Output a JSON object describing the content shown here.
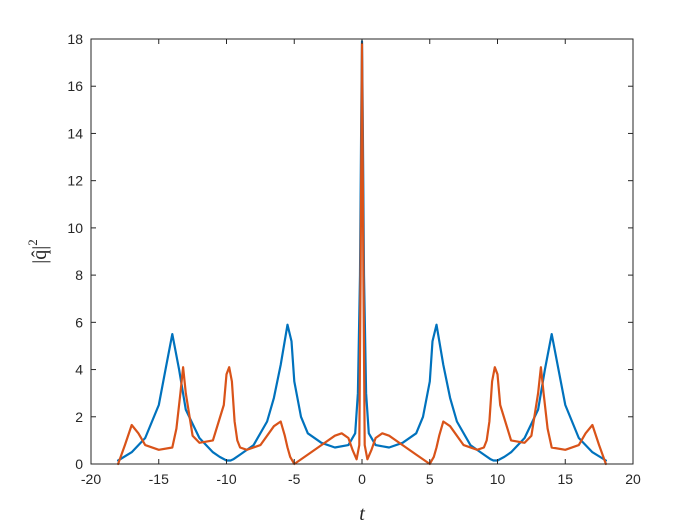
{
  "chart_data": {
    "type": "line",
    "title": "",
    "xlabel": "t",
    "ylabel_base": "|q̂|",
    "ylabel_sup": "2",
    "xlim": [
      -20,
      20
    ],
    "ylim": [
      0,
      18
    ],
    "xticks": [
      -20,
      -15,
      -10,
      -5,
      0,
      5,
      10,
      15,
      20
    ],
    "yticks": [
      0,
      2,
      4,
      6,
      8,
      10,
      12,
      14,
      16,
      18
    ],
    "grid": false,
    "series": [
      {
        "color": "#0072BD",
        "x": [
          -18,
          -17,
          -16,
          -15,
          -14.5,
          -14,
          -13.5,
          -13,
          -12,
          -11,
          -10.5,
          -10,
          -9.7,
          -9.5,
          -9,
          -8,
          -7,
          -6.5,
          -6,
          -5.5,
          -5.2,
          -5,
          -4.5,
          -4,
          -3,
          -2,
          -1,
          -0.5,
          -0.3,
          -0.15,
          -0.05,
          0,
          0.05,
          0.15,
          0.3,
          0.5,
          1,
          2,
          3,
          4,
          4.5,
          5,
          5.2,
          5.5,
          6,
          6.5,
          7,
          8,
          9,
          9.5,
          9.7,
          10,
          10.5,
          11,
          12,
          13,
          13.5,
          14,
          14.5,
          15,
          16,
          17,
          18
        ],
        "y": [
          0.15,
          0.5,
          1.1,
          2.5,
          4.0,
          5.5,
          4.0,
          2.3,
          1.1,
          0.5,
          0.3,
          0.15,
          0.15,
          0.2,
          0.4,
          0.8,
          1.8,
          2.8,
          4.2,
          5.9,
          5.2,
          3.5,
          2.0,
          1.3,
          0.9,
          0.7,
          0.8,
          1.3,
          3.0,
          8.0,
          15.0,
          17.9,
          15.0,
          8.0,
          3.0,
          1.3,
          0.8,
          0.7,
          0.9,
          1.3,
          2.0,
          3.5,
          5.2,
          5.9,
          4.2,
          2.8,
          1.8,
          0.8,
          0.4,
          0.2,
          0.15,
          0.15,
          0.3,
          0.5,
          1.1,
          2.3,
          4.0,
          5.5,
          4.0,
          2.5,
          1.1,
          0.5,
          0.15
        ]
      },
      {
        "color": "#D95319",
        "x": [
          -18,
          -17.5,
          -17,
          -16.5,
          -16,
          -15,
          -14,
          -13.7,
          -13.4,
          -13.2,
          -13,
          -12.5,
          -12,
          -11,
          -10.2,
          -10,
          -9.8,
          -9.6,
          -9.4,
          -9.2,
          -9,
          -8.5,
          -7.5,
          -6.5,
          -6,
          -5.7,
          -5.5,
          -5.3,
          -5.1,
          -5,
          -4,
          -3,
          -2,
          -1.5,
          -1,
          -0.7,
          -0.4,
          -0.2,
          -0.1,
          0,
          0.1,
          0.2,
          0.4,
          0.7,
          1,
          1.5,
          2,
          3,
          4,
          5,
          5.1,
          5.3,
          5.5,
          5.7,
          6,
          6.5,
          7.5,
          8.5,
          9,
          9.2,
          9.4,
          9.6,
          9.8,
          10,
          10.2,
          11,
          12,
          12.5,
          13,
          13.2,
          13.4,
          13.7,
          14,
          15,
          16,
          16.5,
          17,
          17.5,
          18
        ],
        "y": [
          0.0,
          0.8,
          1.65,
          1.3,
          0.8,
          0.6,
          0.7,
          1.5,
          3.0,
          4.1,
          3.0,
          1.2,
          0.9,
          1.0,
          2.5,
          3.8,
          4.1,
          3.5,
          1.8,
          1.0,
          0.7,
          0.6,
          0.8,
          1.6,
          1.8,
          1.2,
          0.7,
          0.3,
          0.1,
          0.0,
          0.4,
          0.8,
          1.2,
          1.3,
          1.1,
          0.6,
          0.2,
          0.8,
          8.0,
          17.8,
          8.0,
          0.8,
          0.2,
          0.6,
          1.1,
          1.3,
          1.2,
          0.8,
          0.4,
          0.0,
          0.1,
          0.3,
          0.7,
          1.2,
          1.8,
          1.6,
          0.8,
          0.6,
          0.7,
          1.0,
          1.8,
          3.5,
          4.1,
          3.8,
          2.5,
          1.0,
          0.9,
          1.2,
          3.0,
          4.1,
          3.0,
          1.5,
          0.7,
          0.6,
          0.8,
          1.3,
          1.65,
          0.8,
          0.0
        ]
      }
    ]
  }
}
